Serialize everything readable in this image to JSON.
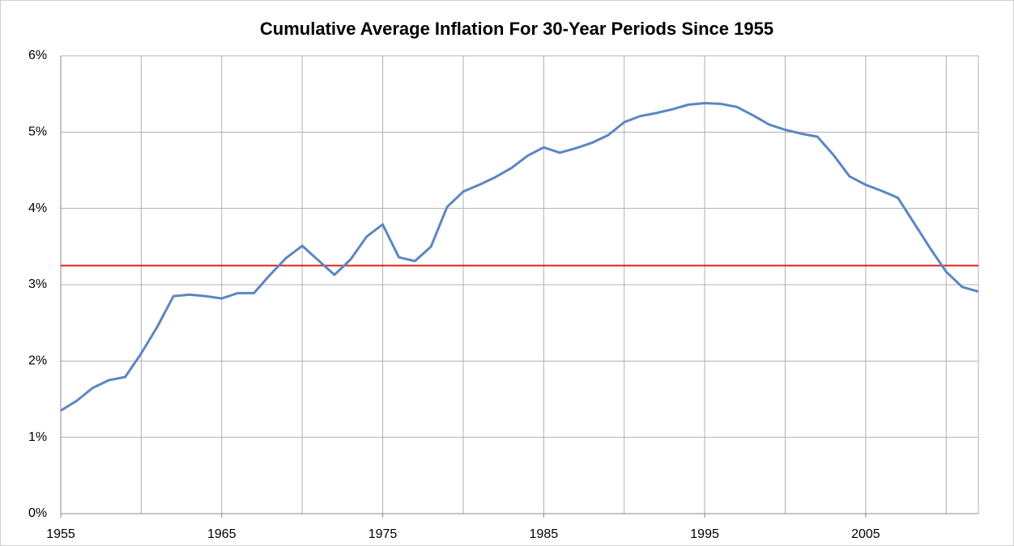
{
  "chart_data": {
    "type": "line",
    "title": "Cumulative Average Inflation For 30-Year Periods Since 1955",
    "x": [
      1955,
      1956,
      1957,
      1958,
      1959,
      1960,
      1961,
      1962,
      1963,
      1964,
      1965,
      1966,
      1967,
      1968,
      1969,
      1970,
      1971,
      1972,
      1973,
      1974,
      1975,
      1976,
      1977,
      1978,
      1979,
      1980,
      1981,
      1982,
      1983,
      1984,
      1985,
      1986,
      1987,
      1988,
      1989,
      1990,
      1991,
      1992,
      1993,
      1994,
      1995,
      1996,
      1997,
      1998,
      1999,
      2000,
      2001,
      2002,
      2003,
      2004,
      2005,
      2006,
      2007,
      2008,
      2009,
      2010,
      2011,
      2012
    ],
    "series": [
      {
        "color": "#5b87c2",
        "values": [
          1.35,
          1.48,
          1.65,
          1.75,
          1.79,
          2.1,
          2.45,
          2.85,
          2.87,
          2.85,
          2.82,
          2.89,
          2.89,
          3.13,
          3.35,
          3.51,
          3.32,
          3.13,
          3.33,
          3.63,
          3.79,
          3.36,
          3.31,
          3.5,
          4.02,
          4.22,
          4.31,
          4.41,
          4.53,
          4.69,
          4.8,
          4.73,
          4.79,
          4.86,
          4.96,
          5.13,
          5.21,
          5.25,
          5.3,
          5.36,
          5.38,
          5.37,
          5.33,
          5.22,
          5.1,
          5.03,
          4.98,
          4.94,
          4.7,
          4.42,
          4.31,
          4.23,
          4.14,
          3.81,
          3.48,
          3.17,
          2.97,
          2.91
        ]
      }
    ],
    "reference_line": {
      "value": 3.25,
      "color": "#e02020"
    },
    "xlim": [
      1955,
      2012
    ],
    "xticks": [
      1955,
      1965,
      1975,
      1985,
      1995,
      2005
    ],
    "x_grid_lines": [
      1960,
      1965,
      1970,
      1975,
      1980,
      1985,
      1990,
      1995,
      2000,
      2005,
      2010
    ],
    "ylim": [
      0,
      6
    ],
    "yticks": [
      {
        "value": 0,
        "label": "0%"
      },
      {
        "value": 1,
        "label": "1%"
      },
      {
        "value": 2,
        "label": "2%"
      },
      {
        "value": 3,
        "label": "3%"
      },
      {
        "value": 4,
        "label": "4%"
      },
      {
        "value": 5,
        "label": "5%"
      },
      {
        "value": 6,
        "label": "6%"
      }
    ],
    "grid": true
  }
}
